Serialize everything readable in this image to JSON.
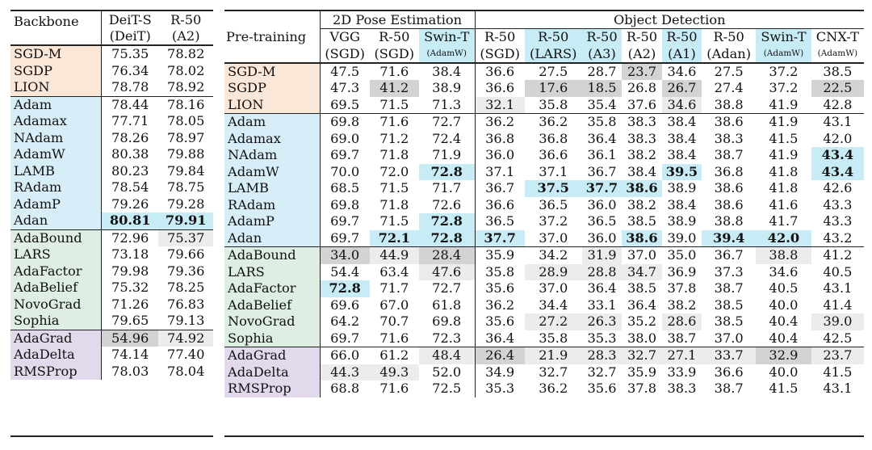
{
  "left": {
    "header": [
      "Backbone",
      "DeiT-S",
      "R-50"
    ],
    "subheader": [
      "",
      "(DeiT)",
      "(A2)"
    ],
    "rows": [
      {
        "name": "SGD-M",
        "g": "orange",
        "v": [
          "75.35",
          "78.82"
        ],
        "hl": [
          "",
          ""
        ]
      },
      {
        "name": "SGDP",
        "g": "orange",
        "v": [
          "76.34",
          "78.02"
        ],
        "hl": [
          "",
          ""
        ]
      },
      {
        "name": "LION",
        "g": "orange",
        "v": [
          "78.78",
          "78.92"
        ],
        "hl": [
          "",
          ""
        ]
      },
      {
        "name": "Adam",
        "g": "blue",
        "v": [
          "78.44",
          "78.16"
        ],
        "hl": [
          "",
          ""
        ]
      },
      {
        "name": "Adamax",
        "g": "blue",
        "v": [
          "77.71",
          "78.05"
        ],
        "hl": [
          "",
          ""
        ]
      },
      {
        "name": "NAdam",
        "g": "blue",
        "v": [
          "78.26",
          "78.97"
        ],
        "hl": [
          "",
          ""
        ]
      },
      {
        "name": "AdamW",
        "g": "blue",
        "v": [
          "80.38",
          "79.88"
        ],
        "hl": [
          "",
          ""
        ]
      },
      {
        "name": "LAMB",
        "g": "blue",
        "v": [
          "80.23",
          "79.84"
        ],
        "hl": [
          "",
          ""
        ]
      },
      {
        "name": "RAdam",
        "g": "blue",
        "v": [
          "78.54",
          "78.75"
        ],
        "hl": [
          "",
          ""
        ]
      },
      {
        "name": "AdamP",
        "g": "blue",
        "v": [
          "79.26",
          "79.28"
        ],
        "hl": [
          "",
          ""
        ]
      },
      {
        "name": "Adan",
        "g": "blue",
        "v": [
          "80.81",
          "79.91"
        ],
        "hl": [
          "bc",
          "bc"
        ]
      },
      {
        "name": "AdaBound",
        "g": "green",
        "v": [
          "72.96",
          "75.37"
        ],
        "hl": [
          "",
          "l"
        ]
      },
      {
        "name": "LARS",
        "g": "green",
        "v": [
          "73.18",
          "79.66"
        ],
        "hl": [
          "",
          ""
        ]
      },
      {
        "name": "AdaFactor",
        "g": "green",
        "v": [
          "79.98",
          "79.36"
        ],
        "hl": [
          "",
          ""
        ]
      },
      {
        "name": "AdaBelief",
        "g": "green",
        "v": [
          "75.32",
          "78.25"
        ],
        "hl": [
          "",
          ""
        ]
      },
      {
        "name": "NovoGrad",
        "g": "green",
        "v": [
          "71.26",
          "76.83"
        ],
        "hl": [
          "",
          ""
        ]
      },
      {
        "name": "Sophia",
        "g": "green",
        "v": [
          "79.65",
          "79.13"
        ],
        "hl": [
          "",
          ""
        ]
      },
      {
        "name": "AdaGrad",
        "g": "purple",
        "v": [
          "54.96",
          "74.92"
        ],
        "hl": [
          "g",
          "l"
        ]
      },
      {
        "name": "AdaDelta",
        "g": "purple",
        "v": [
          "74.14",
          "77.40"
        ],
        "hl": [
          "",
          ""
        ]
      },
      {
        "name": "RMSProp",
        "g": "purple",
        "v": [
          "78.03",
          "78.04"
        ],
        "hl": [
          "",
          ""
        ]
      }
    ]
  },
  "right": {
    "pretraining_label": "Pre-training",
    "group_headers": [
      {
        "label": "2D Pose Estimation",
        "span": 3
      },
      {
        "label": "Object Detection",
        "span": 8
      }
    ],
    "col_top": [
      "VGG",
      "R-50",
      "Swin-T",
      "R-50",
      "R-50",
      "R-50",
      "R-50",
      "R-50",
      "R-50",
      "Swin-T",
      "CNX-T"
    ],
    "col_bottom": [
      "(SGD)",
      "(SGD)",
      "(AdamW)",
      "(SGD)",
      "(LARS)",
      "(A3)",
      "(A2)",
      "(A1)",
      "(Adan)",
      "(AdamW)",
      "(AdamW)"
    ],
    "col_bottom_small": [
      false,
      false,
      true,
      false,
      false,
      false,
      false,
      false,
      false,
      true,
      true
    ],
    "col_hl": [
      "",
      "",
      "c",
      "",
      "c",
      "c",
      "",
      "c",
      "",
      "c",
      ""
    ],
    "rows": [
      {
        "name": "SGD-M",
        "g": "orange",
        "v": [
          "47.5",
          "71.6",
          "38.4",
          "36.6",
          "27.5",
          "28.7",
          "23.7",
          "34.6",
          "27.5",
          "37.2",
          "38.5"
        ],
        "hl": [
          "",
          "",
          "",
          "",
          "",
          "",
          "g",
          "",
          "",
          "",
          ""
        ]
      },
      {
        "name": "SGDP",
        "g": "orange",
        "v": [
          "47.3",
          "41.2",
          "38.9",
          "36.6",
          "17.6",
          "18.5",
          "26.8",
          "26.7",
          "27.4",
          "37.2",
          "22.5"
        ],
        "hl": [
          "",
          "g",
          "",
          "",
          "g",
          "g",
          "",
          "g",
          "",
          "",
          "g"
        ]
      },
      {
        "name": "LION",
        "g": "orange",
        "v": [
          "69.5",
          "71.5",
          "71.3",
          "32.1",
          "35.8",
          "35.4",
          "37.6",
          "34.6",
          "38.8",
          "41.9",
          "42.8"
        ],
        "hl": [
          "",
          "",
          "",
          "l",
          "",
          "",
          "",
          "l",
          "",
          "",
          ""
        ]
      },
      {
        "name": "Adam",
        "g": "blue",
        "v": [
          "69.8",
          "71.6",
          "72.7",
          "36.2",
          "36.2",
          "35.8",
          "38.3",
          "38.4",
          "38.6",
          "41.9",
          "43.1"
        ],
        "hl": [
          "",
          "",
          "",
          "",
          "",
          "",
          "",
          "",
          "",
          "",
          ""
        ]
      },
      {
        "name": "Adamax",
        "g": "blue",
        "v": [
          "69.0",
          "71.2",
          "72.4",
          "36.8",
          "36.8",
          "36.4",
          "38.3",
          "38.4",
          "38.3",
          "41.5",
          "42.0"
        ],
        "hl": [
          "",
          "",
          "",
          "",
          "",
          "",
          "",
          "",
          "",
          "",
          ""
        ]
      },
      {
        "name": "NAdam",
        "g": "blue",
        "v": [
          "69.7",
          "71.8",
          "71.9",
          "36.0",
          "36.6",
          "36.1",
          "38.2",
          "38.4",
          "38.7",
          "41.9",
          "43.4"
        ],
        "hl": [
          "",
          "",
          "",
          "",
          "",
          "",
          "",
          "",
          "",
          "",
          "bc"
        ]
      },
      {
        "name": "AdamW",
        "g": "blue",
        "v": [
          "70.0",
          "72.0",
          "72.8",
          "37.1",
          "37.1",
          "36.7",
          "38.4",
          "39.5",
          "36.8",
          "41.8",
          "43.4"
        ],
        "hl": [
          "",
          "",
          "bc",
          "",
          "",
          "",
          "",
          "bc",
          "",
          "",
          "bc"
        ]
      },
      {
        "name": "LAMB",
        "g": "blue",
        "v": [
          "68.5",
          "71.5",
          "71.7",
          "36.7",
          "37.5",
          "37.7",
          "38.6",
          "38.9",
          "38.6",
          "41.8",
          "42.6"
        ],
        "hl": [
          "",
          "",
          "",
          "",
          "bc",
          "bc",
          "bc",
          "",
          "",
          "",
          ""
        ]
      },
      {
        "name": "RAdam",
        "g": "blue",
        "v": [
          "69.8",
          "71.8",
          "72.6",
          "36.6",
          "36.5",
          "36.0",
          "38.2",
          "38.4",
          "38.6",
          "41.6",
          "43.3"
        ],
        "hl": [
          "",
          "",
          "",
          "",
          "",
          "",
          "",
          "",
          "",
          "",
          ""
        ]
      },
      {
        "name": "AdamP",
        "g": "blue",
        "v": [
          "69.7",
          "71.5",
          "72.8",
          "36.5",
          "37.2",
          "36.5",
          "38.5",
          "38.9",
          "38.8",
          "41.7",
          "43.3"
        ],
        "hl": [
          "",
          "",
          "bc",
          "",
          "",
          "",
          "",
          "",
          "",
          "",
          ""
        ]
      },
      {
        "name": "Adan",
        "g": "blue",
        "v": [
          "69.7",
          "72.1",
          "72.8",
          "37.7",
          "37.0",
          "36.0",
          "38.6",
          "39.0",
          "39.4",
          "42.0",
          "43.2"
        ],
        "hl": [
          "",
          "bc",
          "bc",
          "bc",
          "",
          "",
          "bc",
          "",
          "bc",
          "bc",
          ""
        ]
      },
      {
        "name": "AdaBound",
        "g": "green",
        "v": [
          "34.0",
          "44.9",
          "28.4",
          "35.9",
          "34.2",
          "31.9",
          "37.0",
          "35.0",
          "36.7",
          "38.8",
          "41.2"
        ],
        "hl": [
          "g",
          "l",
          "g",
          "",
          "",
          "l",
          "",
          "",
          "",
          "l",
          ""
        ]
      },
      {
        "name": "LARS",
        "g": "green",
        "v": [
          "54.4",
          "63.4",
          "47.6",
          "35.8",
          "28.9",
          "28.8",
          "34.7",
          "36.9",
          "37.3",
          "34.6",
          "40.5"
        ],
        "hl": [
          "",
          "",
          "l",
          "",
          "l",
          "l",
          "l",
          "",
          "",
          "",
          ""
        ]
      },
      {
        "name": "AdaFactor",
        "g": "green",
        "v": [
          "72.8",
          "71.7",
          "72.7",
          "35.6",
          "37.0",
          "36.4",
          "38.5",
          "37.8",
          "38.7",
          "40.5",
          "43.1"
        ],
        "hl": [
          "bc",
          "",
          "",
          "",
          "",
          "",
          "",
          "",
          "",
          "",
          ""
        ]
      },
      {
        "name": "AdaBelief",
        "g": "green",
        "v": [
          "69.6",
          "67.0",
          "61.8",
          "36.2",
          "34.4",
          "33.1",
          "36.4",
          "38.2",
          "38.5",
          "40.0",
          "41.4"
        ],
        "hl": [
          "",
          "",
          "",
          "",
          "",
          "",
          "",
          "",
          "",
          "",
          ""
        ]
      },
      {
        "name": "NovoGrad",
        "g": "green",
        "v": [
          "64.2",
          "70.7",
          "69.8",
          "35.6",
          "27.2",
          "26.3",
          "35.2",
          "28.6",
          "38.5",
          "40.4",
          "39.0"
        ],
        "hl": [
          "",
          "",
          "",
          "",
          "l",
          "l",
          "",
          "l",
          "",
          "",
          "l"
        ]
      },
      {
        "name": "Sophia",
        "g": "green",
        "v": [
          "69.7",
          "71.6",
          "72.3",
          "36.4",
          "35.8",
          "35.3",
          "38.0",
          "38.7",
          "37.0",
          "40.4",
          "42.5"
        ],
        "hl": [
          "",
          "",
          "",
          "",
          "",
          "",
          "",
          "",
          "",
          "",
          ""
        ]
      },
      {
        "name": "AdaGrad",
        "g": "purple",
        "v": [
          "66.0",
          "61.2",
          "48.4",
          "26.4",
          "21.9",
          "28.3",
          "32.7",
          "27.1",
          "33.7",
          "32.9",
          "23.7"
        ],
        "hl": [
          "",
          "",
          "l",
          "g",
          "l",
          "l",
          "l",
          "l",
          "l",
          "g",
          "l"
        ]
      },
      {
        "name": "AdaDelta",
        "g": "purple",
        "v": [
          "44.3",
          "49.3",
          "52.0",
          "34.9",
          "32.7",
          "32.7",
          "35.9",
          "33.9",
          "36.6",
          "40.0",
          "41.5"
        ],
        "hl": [
          "l",
          "l",
          "",
          "",
          "",
          "",
          "",
          "",
          "",
          "",
          ""
        ]
      },
      {
        "name": "RMSProp",
        "g": "purple",
        "v": [
          "68.8",
          "71.6",
          "72.5",
          "35.3",
          "36.2",
          "35.6",
          "37.8",
          "38.3",
          "38.7",
          "41.5",
          "43.1"
        ],
        "hl": [
          "",
          "",
          "",
          "",
          "",
          "",
          "",
          "",
          "",
          "",
          ""
        ]
      }
    ]
  }
}
